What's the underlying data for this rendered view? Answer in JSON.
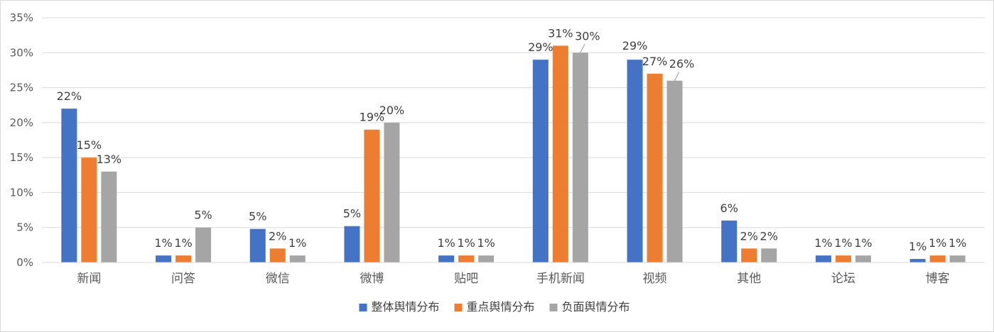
{
  "chart_data": {
    "type": "bar",
    "categories": [
      "新闻",
      "问答",
      "微信",
      "微博",
      "贴吧",
      "手机新闻",
      "视频",
      "其他",
      "论坛",
      "博客"
    ],
    "series": [
      {
        "name": "整体舆情分布",
        "color": "#4472c4",
        "values": [
          22,
          1,
          4.8,
          5.2,
          1,
          29,
          29,
          6,
          1,
          0.5
        ],
        "labels": [
          "22%",
          "1%",
          "5%",
          "5%",
          "1%",
          "29%",
          "29%",
          "6%",
          "1%",
          "1%"
        ]
      },
      {
        "name": "重点舆情分布",
        "color": "#ed7d31",
        "values": [
          15,
          1,
          2,
          19,
          1,
          31,
          27,
          2,
          1,
          1
        ],
        "labels": [
          "15%",
          "1%",
          "2%",
          "19%",
          "1%",
          "31%",
          "27%",
          "2%",
          "1%",
          "1%"
        ]
      },
      {
        "name": "负面舆情分布",
        "color": "#a5a5a5",
        "values": [
          13,
          5,
          1,
          20,
          1,
          30,
          26,
          2,
          1,
          1
        ],
        "labels": [
          "13%",
          "5%",
          "1%",
          "20%",
          "1%",
          "30%",
          "26%",
          "2%",
          "1%",
          "1%"
        ]
      }
    ],
    "ylim": [
      0,
      35
    ],
    "yticks": [
      0,
      5,
      10,
      15,
      20,
      25,
      30,
      35
    ],
    "ytick_labels": [
      "0%",
      "5%",
      "10%",
      "15%",
      "20%",
      "25%",
      "30%",
      "35%"
    ],
    "grid": true,
    "legend_position": "bottom",
    "title": "",
    "xlabel": "",
    "ylabel": ""
  }
}
